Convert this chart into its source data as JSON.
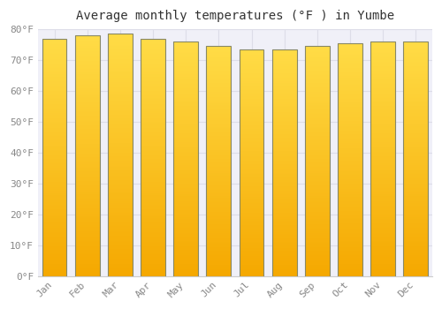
{
  "title": "Average monthly temperatures (°F ) in Yumbe",
  "months": [
    "Jan",
    "Feb",
    "Mar",
    "Apr",
    "May",
    "Jun",
    "Jul",
    "Aug",
    "Sep",
    "Oct",
    "Nov",
    "Dec"
  ],
  "values": [
    77.0,
    78.0,
    78.5,
    77.0,
    76.0,
    74.5,
    73.5,
    73.5,
    74.5,
    75.5,
    76.0,
    76.0
  ],
  "bar_color_top": "#FFD84D",
  "bar_color_bottom": "#F5A800",
  "bar_edge_color": "#888866",
  "background_color": "#FFFFFF",
  "plot_bg_color": "#F0F0F8",
  "grid_color": "#DDDDE8",
  "tick_label_color": "#888888",
  "title_color": "#333333",
  "ylim": [
    0,
    80
  ],
  "yticks": [
    0,
    10,
    20,
    30,
    40,
    50,
    60,
    70,
    80
  ],
  "title_fontsize": 10,
  "tick_fontsize": 8,
  "figsize": [
    5.0,
    3.5
  ],
  "dpi": 100,
  "bar_width": 0.75
}
